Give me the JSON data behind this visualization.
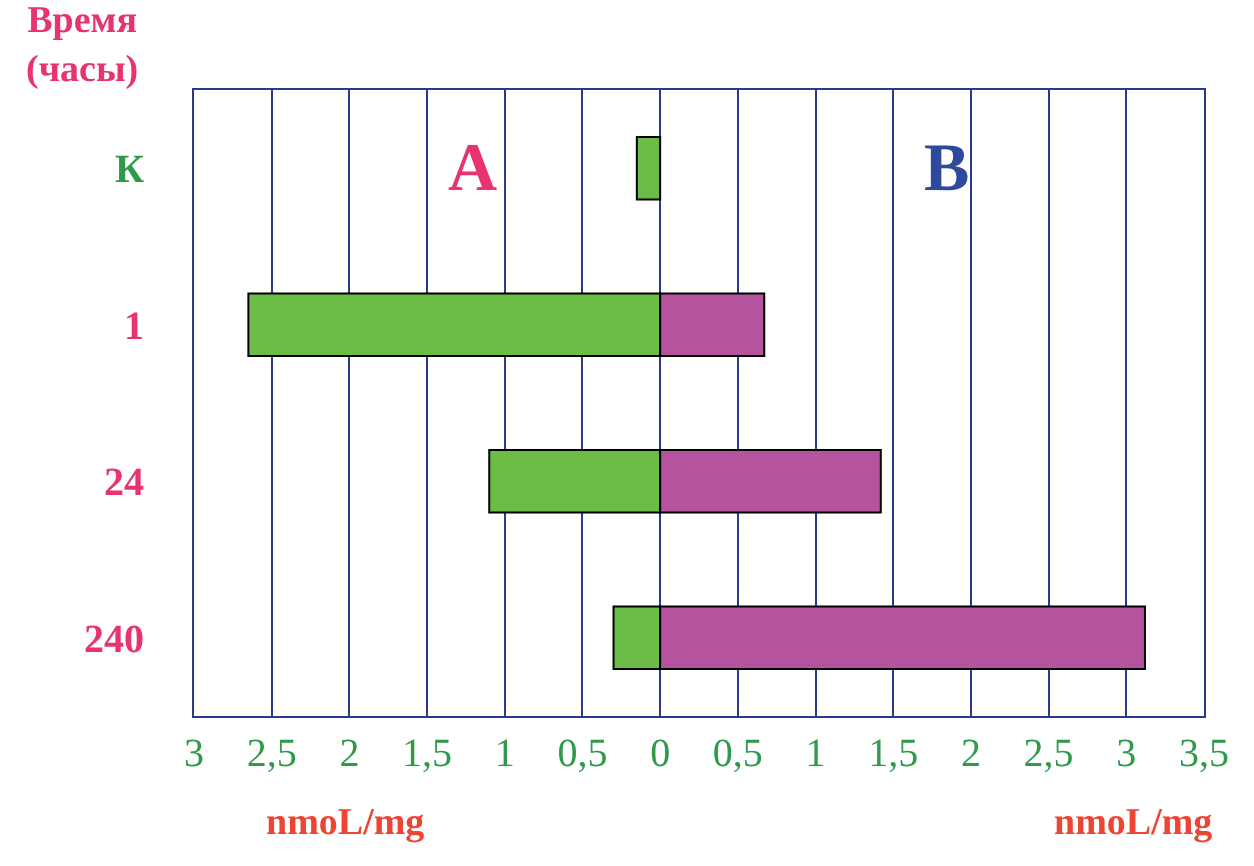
{
  "chart_data": {
    "type": "bar",
    "orientation": "horizontal",
    "stacked": true,
    "ylabel": "Время\n(часы)",
    "categories": [
      "К",
      "1",
      "24",
      "240"
    ],
    "series": [
      {
        "name": "A",
        "color": "#6cbd45",
        "values": [
          -0.15,
          -2.65,
          -1.1,
          -0.3
        ]
      },
      {
        "name": "B",
        "color": "#b5539f",
        "values": [
          null,
          0.67,
          1.42,
          3.12
        ]
      }
    ],
    "xlim": [
      -3,
      3.5
    ],
    "xticks": [
      {
        "value": -3,
        "label": "3"
      },
      {
        "value": -2.5,
        "label": "2,5"
      },
      {
        "value": -2,
        "label": "2"
      },
      {
        "value": -1.5,
        "label": "1,5"
      },
      {
        "value": -1,
        "label": "1"
      },
      {
        "value": -0.5,
        "label": "0,5"
      },
      0,
      {
        "value": 0.5,
        "label": "0,5"
      },
      1,
      {
        "value": 1.5,
        "label": "1,5"
      },
      2,
      {
        "value": 2.5,
        "label": "2,5"
      },
      3,
      {
        "value": 3.5,
        "label": "3,5"
      }
    ],
    "grid": "x",
    "legend": false,
    "annotations": [
      "nmoL/mg",
      "nmoL/mg"
    ]
  }
}
